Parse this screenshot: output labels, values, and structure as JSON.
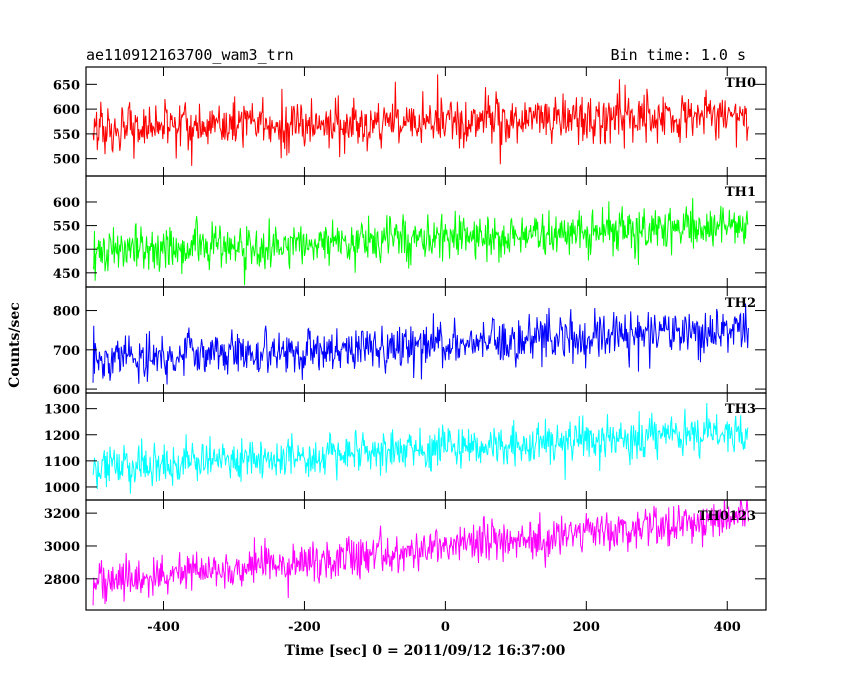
{
  "chart_data": {
    "type": "line",
    "title": "ae110912163700_wam3_trn",
    "subtitle": "Bin time: 1.0 s",
    "xlabel": "Time [sec] 0 = 2011/09/12 16:37:00",
    "ylabel": "Counts/sec",
    "xlim": [
      -510,
      455
    ],
    "x_ticks": [
      -400,
      -200,
      0,
      200,
      400
    ],
    "x_data_range": [
      -500,
      430
    ],
    "bin_time_s": 1.0,
    "series": [
      {
        "name": "TH0",
        "color": "#ff0000",
        "ylim": [
          465,
          685
        ],
        "y_ticks": [
          500,
          550,
          600,
          650
        ],
        "trend_start": 560,
        "trend_end": 590,
        "noise_sd": 25
      },
      {
        "name": "TH1",
        "color": "#00ff00",
        "ylim": [
          420,
          655
        ],
        "y_ticks": [
          450,
          500,
          550,
          600
        ],
        "trend_start": 495,
        "trend_end": 550,
        "noise_sd": 24
      },
      {
        "name": "TH2",
        "color": "#0000ff",
        "ylim": [
          590,
          860
        ],
        "y_ticks": [
          600,
          700,
          800
        ],
        "trend_start": 675,
        "trend_end": 750,
        "noise_sd": 28
      },
      {
        "name": "TH3",
        "color": "#00ffff",
        "ylim": [
          950,
          1360
        ],
        "y_ticks": [
          1000,
          1100,
          1200,
          1300
        ],
        "trend_start": 1080,
        "trend_end": 1210,
        "noise_sd": 40
      },
      {
        "name": "TH0123",
        "color": "#ff00ff",
        "ylim": [
          2610,
          3280
        ],
        "y_ticks": [
          2800,
          3000,
          3200
        ],
        "trend_start": 2775,
        "trend_end": 3180,
        "noise_sd": 60
      }
    ]
  }
}
